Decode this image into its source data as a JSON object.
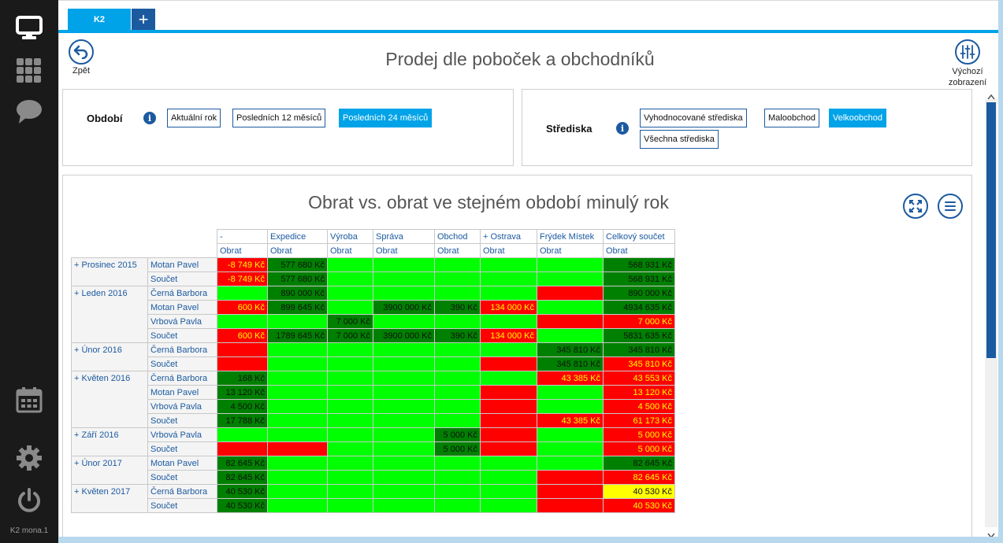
{
  "sidebar": {
    "user": "K2 mona.1"
  },
  "tabs": [
    {
      "label": "K2"
    }
  ],
  "header": {
    "back_label": "Zpět",
    "title": "Prodej dle poboček a obchodníků",
    "default_view_label": "Výchozí zobrazení"
  },
  "filters": {
    "period": {
      "label": "Období",
      "options": [
        "Aktuální rok",
        "Posledních 12 měsíců",
        "Posledních 24 měsíců"
      ],
      "selected": "Posledních 24 měsíců"
    },
    "centers": {
      "label": "Střediska",
      "options": [
        "Vyhodnocované střediska",
        "Maloobchod",
        "Velkoobchod",
        "Všechna střediska"
      ],
      "selected": "Velkoobchod"
    }
  },
  "chart": {
    "title": "Obrat vs. obrat ve stejném období minulý rok"
  },
  "colors": {
    "accent": "#00a3e8",
    "brand": "#1c5aa0",
    "light_green": "#00ff00",
    "dark_green": "#008000",
    "red": "#ff0000",
    "yellow": "#ffff00"
  },
  "chart_data": {
    "type": "table",
    "columns": [
      "-",
      "Expedice",
      "Výroba",
      "Správa",
      "Obchod",
      "+ Ostrava",
      "Frýdek Místek",
      "Celkový součet"
    ],
    "measure": "Obrat",
    "groups": [
      {
        "label": "+ Prosinec 2015",
        "rows": [
          {
            "label": "Motan Pavel",
            "cells": [
              [
                "-8 749 Kč",
                "r"
              ],
              [
                "577 680 Kč",
                "dg"
              ],
              [
                "",
                "lg"
              ],
              [
                "",
                "lg"
              ],
              [
                "",
                "lg"
              ],
              [
                "",
                "lg"
              ],
              [
                "",
                "lg"
              ],
              [
                "568 931 Kč",
                "dg"
              ]
            ]
          },
          {
            "label": "Součet",
            "cells": [
              [
                "-8 749 Kč",
                "r"
              ],
              [
                "577 680 Kč",
                "dg"
              ],
              [
                "",
                "lg"
              ],
              [
                "",
                "lg"
              ],
              [
                "",
                "lg"
              ],
              [
                "",
                "lg"
              ],
              [
                "",
                "lg"
              ],
              [
                "568 931 Kč",
                "dg"
              ]
            ]
          }
        ]
      },
      {
        "label": "+ Leden 2016",
        "rows": [
          {
            "label": "Černá Barbora",
            "cells": [
              [
                "",
                "lg"
              ],
              [
                "890 000 Kč",
                "dg"
              ],
              [
                "",
                "lg"
              ],
              [
                "",
                "lg"
              ],
              [
                "",
                "lg"
              ],
              [
                "",
                "lg"
              ],
              [
                "",
                "r"
              ],
              [
                "890 000 Kč",
                "dg"
              ]
            ]
          },
          {
            "label": "Motan Pavel",
            "cells": [
              [
                "600 Kč",
                "r"
              ],
              [
                "899 645 Kč",
                "dg"
              ],
              [
                "",
                "lg"
              ],
              [
                "3900 000 Kč",
                "dg"
              ],
              [
                "390 Kč",
                "dg"
              ],
              [
                "134 000 Kč",
                "r"
              ],
              [
                "",
                "lg"
              ],
              [
                "4934 635 Kč",
                "dg"
              ]
            ]
          },
          {
            "label": "Vrbová Pavla",
            "cells": [
              [
                "",
                "lg"
              ],
              [
                "",
                "lg"
              ],
              [
                "7 000 Kč",
                "dg"
              ],
              [
                "",
                "lg"
              ],
              [
                "",
                "lg"
              ],
              [
                "",
                "lg"
              ],
              [
                "",
                "r"
              ],
              [
                "7 000 Kč",
                "r"
              ]
            ]
          },
          {
            "label": "Součet",
            "cells": [
              [
                "600 Kč",
                "r"
              ],
              [
                "1789 645 Kč",
                "dg"
              ],
              [
                "7 000 Kč",
                "dg"
              ],
              [
                "3900 000 Kč",
                "dg"
              ],
              [
                "390 Kč",
                "dg"
              ],
              [
                "134 000 Kč",
                "r"
              ],
              [
                "",
                "lg"
              ],
              [
                "5831 635 Kč",
                "dg"
              ]
            ]
          }
        ]
      },
      {
        "label": "+ Únor 2016",
        "rows": [
          {
            "label": "Černá Barbora",
            "cells": [
              [
                "",
                "r"
              ],
              [
                "",
                "lg"
              ],
              [
                "",
                "lg"
              ],
              [
                "",
                "lg"
              ],
              [
                "",
                "lg"
              ],
              [
                "",
                "lg"
              ],
              [
                "345 810 Kč",
                "dg"
              ],
              [
                "345 810 Kč",
                "dg"
              ]
            ]
          },
          {
            "label": "Součet",
            "cells": [
              [
                "",
                "r"
              ],
              [
                "",
                "lg"
              ],
              [
                "",
                "lg"
              ],
              [
                "",
                "lg"
              ],
              [
                "",
                "lg"
              ],
              [
                "",
                "r"
              ],
              [
                "345 810 Kč",
                "dg"
              ],
              [
                "345 810 Kč",
                "r"
              ]
            ]
          }
        ]
      },
      {
        "label": "+ Květen 2016",
        "rows": [
          {
            "label": "Černá Barbora",
            "cells": [
              [
                "168 Kč",
                "dg"
              ],
              [
                "",
                "lg"
              ],
              [
                "",
                "lg"
              ],
              [
                "",
                "lg"
              ],
              [
                "",
                "lg"
              ],
              [
                "",
                "lg"
              ],
              [
                "43 385 Kč",
                "r"
              ],
              [
                "43 553 Kč",
                "r"
              ]
            ]
          },
          {
            "label": "Motan Pavel",
            "cells": [
              [
                "13 120 Kč",
                "dg"
              ],
              [
                "",
                "lg"
              ],
              [
                "",
                "lg"
              ],
              [
                "",
                "lg"
              ],
              [
                "",
                "lg"
              ],
              [
                "",
                "r"
              ],
              [
                "",
                "lg"
              ],
              [
                "13 120 Kč",
                "r"
              ]
            ]
          },
          {
            "label": "Vrbová Pavla",
            "cells": [
              [
                "4 500 Kč",
                "dg"
              ],
              [
                "",
                "lg"
              ],
              [
                "",
                "lg"
              ],
              [
                "",
                "lg"
              ],
              [
                "",
                "lg"
              ],
              [
                "",
                "r"
              ],
              [
                "",
                "lg"
              ],
              [
                "4 500 Kč",
                "r"
              ]
            ]
          },
          {
            "label": "Součet",
            "cells": [
              [
                "17 788 Kč",
                "dg"
              ],
              [
                "",
                "lg"
              ],
              [
                "",
                "lg"
              ],
              [
                "",
                "lg"
              ],
              [
                "",
                "lg"
              ],
              [
                "",
                "r"
              ],
              [
                "43 385 Kč",
                "r"
              ],
              [
                "61 173 Kč",
                "r"
              ]
            ]
          }
        ]
      },
      {
        "label": "+ Září 2016",
        "rows": [
          {
            "label": "Vrbová Pavla",
            "cells": [
              [
                "",
                "lg"
              ],
              [
                "",
                "lg"
              ],
              [
                "",
                "lg"
              ],
              [
                "",
                "lg"
              ],
              [
                "5 000 Kč",
                "dg"
              ],
              [
                "",
                "r"
              ],
              [
                "",
                "lg"
              ],
              [
                "5 000 Kč",
                "r"
              ]
            ]
          },
          {
            "label": "Součet",
            "cells": [
              [
                "",
                "r"
              ],
              [
                "",
                "r"
              ],
              [
                "",
                "lg"
              ],
              [
                "",
                "lg"
              ],
              [
                "5 000 Kč",
                "dg"
              ],
              [
                "",
                "r"
              ],
              [
                "",
                "lg"
              ],
              [
                "5 000 Kč",
                "r"
              ]
            ]
          }
        ]
      },
      {
        "label": "+ Únor 2017",
        "rows": [
          {
            "label": "Motan Pavel",
            "cells": [
              [
                "82 645 Kč",
                "dg"
              ],
              [
                "",
                "lg"
              ],
              [
                "",
                "lg"
              ],
              [
                "",
                "lg"
              ],
              [
                "",
                "lg"
              ],
              [
                "",
                "lg"
              ],
              [
                "",
                "lg"
              ],
              [
                "82 645 Kč",
                "dg"
              ]
            ]
          },
          {
            "label": "Součet",
            "cells": [
              [
                "82 645 Kč",
                "dg"
              ],
              [
                "",
                "lg"
              ],
              [
                "",
                "lg"
              ],
              [
                "",
                "lg"
              ],
              [
                "",
                "lg"
              ],
              [
                "",
                "lg"
              ],
              [
                "",
                "r"
              ],
              [
                "82 645 Kč",
                "r"
              ]
            ]
          }
        ]
      },
      {
        "label": "+ Květen 2017",
        "rows": [
          {
            "label": "Černá Barbora",
            "cells": [
              [
                "40 530 Kč",
                "dg"
              ],
              [
                "",
                "lg"
              ],
              [
                "",
                "lg"
              ],
              [
                "",
                "lg"
              ],
              [
                "",
                "lg"
              ],
              [
                "",
                "lg"
              ],
              [
                "",
                "r"
              ],
              [
                "40 530 Kč",
                "y"
              ]
            ]
          },
          {
            "label": "Součet",
            "cells": [
              [
                "40 530 Kč",
                "dg"
              ],
              [
                "",
                "lg"
              ],
              [
                "",
                "lg"
              ],
              [
                "",
                "lg"
              ],
              [
                "",
                "lg"
              ],
              [
                "",
                "lg"
              ],
              [
                "",
                "r"
              ],
              [
                "40 530 Kč",
                "r"
              ]
            ]
          }
        ]
      }
    ]
  }
}
